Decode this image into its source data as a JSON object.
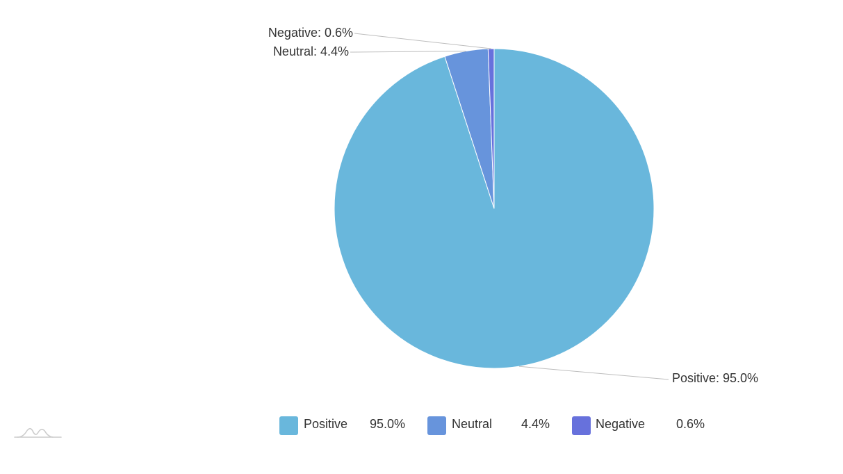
{
  "chart_data": {
    "type": "pie",
    "categories": [
      "Positive",
      "Neutral",
      "Negative"
    ],
    "values": [
      95.0,
      4.4,
      0.6
    ],
    "value_labels": [
      "95.0%",
      "4.4%",
      "0.6%"
    ],
    "slice_labels": [
      "Positive: 95.0%",
      "Neutral: 4.4%",
      "Negative: 0.6%"
    ],
    "colors": [
      "#69b7dc",
      "#6794dc",
      "#6771dc"
    ],
    "legend_position": "bottom",
    "start_angle": "top, clockwise"
  },
  "watermark": {
    "icon": "chart-logo-icon"
  }
}
